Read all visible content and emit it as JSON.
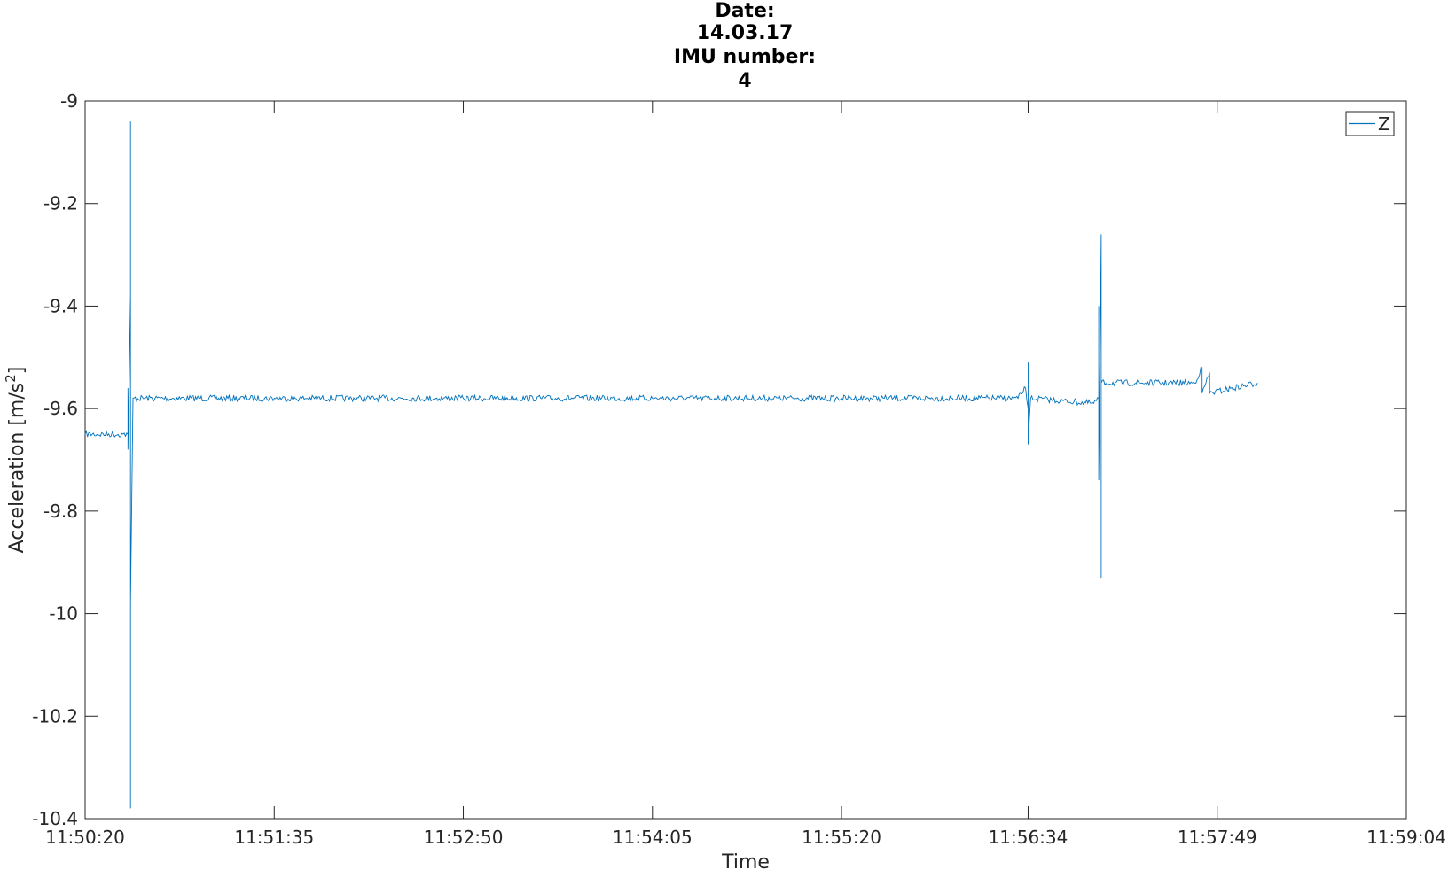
{
  "chart_data": {
    "type": "line",
    "title_lines": [
      "Date:",
      "14.03.17",
      "IMU number:",
      "4"
    ],
    "xlabel": "Time",
    "ylabel": "Acceleration [m/s",
    "ylabel_sup": "2",
    "ylabel_end": "]",
    "x_tick_labels": [
      "11:50:20",
      "11:51:35",
      "11:52:50",
      "11:54:05",
      "11:55:20",
      "11:56:34",
      "11:57:49",
      "11:59:04"
    ],
    "x_range": [
      "11:50:20",
      "11:59:04"
    ],
    "ylim": [
      -10.4,
      -9.0
    ],
    "y_ticks": [
      -9,
      -9.2,
      -9.4,
      -9.6,
      -9.8,
      -10,
      -10.2,
      -10.4
    ],
    "y_tick_labels": [
      "-9",
      "-9.2",
      "-9.4",
      "-9.6",
      "-9.8",
      "-10",
      "-10.2",
      "-10.4"
    ],
    "grid": false,
    "legend_position": "top-right",
    "series": [
      {
        "name": "Z",
        "color": "#0072bd",
        "points": [
          [
            "11:50:20",
            -9.65
          ],
          [
            "11:50:35",
            -9.65
          ],
          [
            "11:50:37",
            -9.65
          ],
          [
            "11:50:37",
            -9.56
          ],
          [
            "11:50:37",
            -9.68
          ],
          [
            "11:50:38",
            -9.38
          ],
          [
            "11:50:38",
            -9.15
          ],
          [
            "11:50:38",
            -9.04
          ],
          [
            "11:50:38",
            -9.71
          ],
          [
            "11:50:38",
            -10.38
          ],
          [
            "11:50:38",
            -9.98
          ],
          [
            "11:50:39",
            -9.58
          ],
          [
            "11:51:35",
            -9.58
          ],
          [
            "11:52:50",
            -9.58
          ],
          [
            "11:54:05",
            -9.58
          ],
          [
            "11:55:20",
            -9.58
          ],
          [
            "11:56:30",
            -9.58
          ],
          [
            "11:56:33",
            -9.56
          ],
          [
            "11:56:34",
            -9.6
          ],
          [
            "11:56:34",
            -9.51
          ],
          [
            "11:56:34",
            -9.67
          ],
          [
            "11:56:35",
            -9.58
          ],
          [
            "11:57:00",
            -9.59
          ],
          [
            "11:57:02",
            -9.58
          ],
          [
            "11:57:02",
            -9.4
          ],
          [
            "11:57:02",
            -9.74
          ],
          [
            "11:57:03",
            -9.26
          ],
          [
            "11:57:03",
            -9.93
          ],
          [
            "11:57:03",
            -9.55
          ],
          [
            "11:57:40",
            -9.55
          ],
          [
            "11:57:43",
            -9.52
          ],
          [
            "11:57:43",
            -9.57
          ],
          [
            "11:57:46",
            -9.53
          ],
          [
            "11:57:46",
            -9.57
          ],
          [
            "11:58:05",
            -9.55
          ]
        ]
      }
    ]
  }
}
